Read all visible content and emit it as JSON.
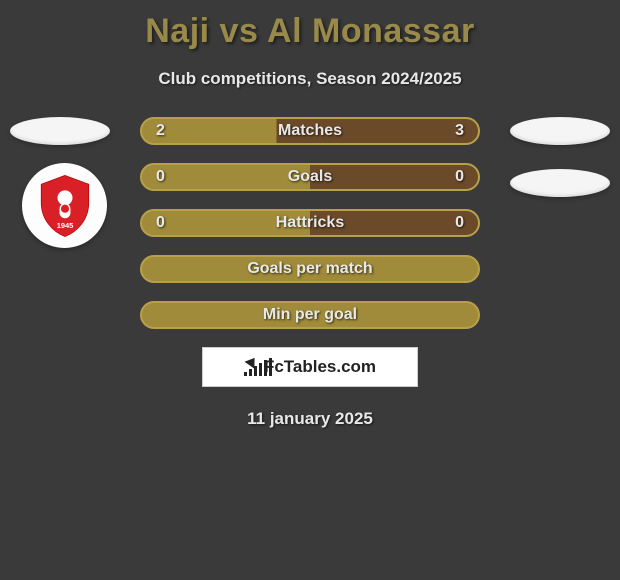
{
  "title": "Naji vs Al Monassar",
  "subtitle": "Club competitions, Season 2024/2025",
  "date": "11 january 2025",
  "logo_text": "FcTables.com",
  "colors": {
    "olive": "#a08b3a",
    "olive_border": "#b8a04a",
    "brown": "#6b4a2a",
    "page_bg": "#3a3a3a"
  },
  "stats": [
    {
      "label": "Matches",
      "left_val": "2",
      "right_val": "3",
      "split_pct": 40,
      "left_color": "#a08b3a",
      "right_color": "#6b4a2a",
      "border_color": "#b8a04a",
      "show_vals": true
    },
    {
      "label": "Goals",
      "left_val": "0",
      "right_val": "0",
      "split_pct": 50,
      "left_color": "#a08b3a",
      "right_color": "#6b4a2a",
      "border_color": "#b8a04a",
      "show_vals": true
    },
    {
      "label": "Hattricks",
      "left_val": "0",
      "right_val": "0",
      "split_pct": 50,
      "left_color": "#a08b3a",
      "right_color": "#6b4a2a",
      "border_color": "#b8a04a",
      "show_vals": true
    },
    {
      "label": "Goals per match",
      "left_val": "",
      "right_val": "",
      "split_pct": 100,
      "left_color": "#a08b3a",
      "right_color": "#a08b3a",
      "border_color": "#b8a04a",
      "show_vals": false
    },
    {
      "label": "Min per goal",
      "left_val": "",
      "right_val": "",
      "split_pct": 100,
      "left_color": "#a08b3a",
      "right_color": "#a08b3a",
      "border_color": "#b8a04a",
      "show_vals": false
    }
  ],
  "logo_bars": [
    4,
    7,
    10,
    13,
    16,
    18
  ]
}
